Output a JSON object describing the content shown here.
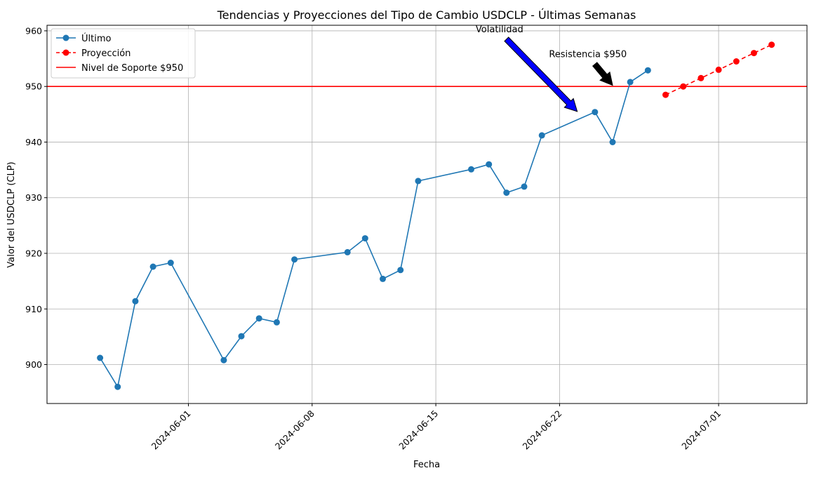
{
  "chart_data": {
    "type": "line",
    "title": "Tendencias y Proyecciones del Tipo de Cambio USDCLP - Últimas Semanas",
    "xlabel": "Fecha",
    "ylabel": "Valor del USDCLP (CLP)",
    "ylim": [
      893,
      961
    ],
    "xlim": [
      "2024-05-24",
      "2024-07-06"
    ],
    "grid": true,
    "legend_position": "top-left",
    "yticks": [
      900,
      910,
      920,
      930,
      940,
      950,
      960
    ],
    "xticks": [
      "2024-06-01",
      "2024-06-08",
      "2024-06-15",
      "2024-06-22",
      "2024-07-01"
    ],
    "series": [
      {
        "name": "Último",
        "color": "#1f77b4",
        "style": "solid",
        "marker": "circle",
        "x": [
          "2024-05-27",
          "2024-05-28",
          "2024-05-29",
          "2024-05-30",
          "2024-05-31",
          "2024-06-03",
          "2024-06-04",
          "2024-06-05",
          "2024-06-06",
          "2024-06-07",
          "2024-06-10",
          "2024-06-11",
          "2024-06-12",
          "2024-06-13",
          "2024-06-14",
          "2024-06-17",
          "2024-06-18",
          "2024-06-19",
          "2024-06-20",
          "2024-06-21",
          "2024-06-24",
          "2024-06-25",
          "2024-06-26",
          "2024-06-27"
        ],
        "values": [
          901.2,
          896.0,
          911.4,
          917.6,
          918.3,
          900.8,
          905.1,
          908.3,
          907.6,
          918.9,
          920.2,
          922.7,
          915.4,
          917.0,
          933.0,
          935.1,
          936.0,
          930.9,
          932.0,
          941.2,
          945.4,
          940.0,
          950.8,
          952.9
        ]
      },
      {
        "name": "Proyección",
        "color": "#ff0000",
        "style": "dashed",
        "marker": "circle",
        "x": [
          "2024-06-28",
          "2024-06-29",
          "2024-06-30",
          "2024-07-01",
          "2024-07-02",
          "2024-07-03",
          "2024-07-04"
        ],
        "values": [
          948.5,
          950.0,
          951.5,
          953.0,
          954.5,
          956.0,
          957.5
        ]
      }
    ],
    "hlines": [
      {
        "name": "Nivel de Soporte $950",
        "y": 950,
        "color": "#ff0000"
      }
    ],
    "annotations": [
      {
        "text": "Volatilidad",
        "arrow_tail": [
          "2024-06-19",
          958.5
        ],
        "arrow_head": [
          "2024-06-23",
          945.5
        ],
        "color": "#0000ff"
      },
      {
        "text": "Resistencia $950",
        "arrow_tail": [
          "2024-06-24",
          954.0
        ],
        "arrow_head": [
          "2024-06-25",
          950.2
        ],
        "color": "#000000"
      }
    ]
  }
}
